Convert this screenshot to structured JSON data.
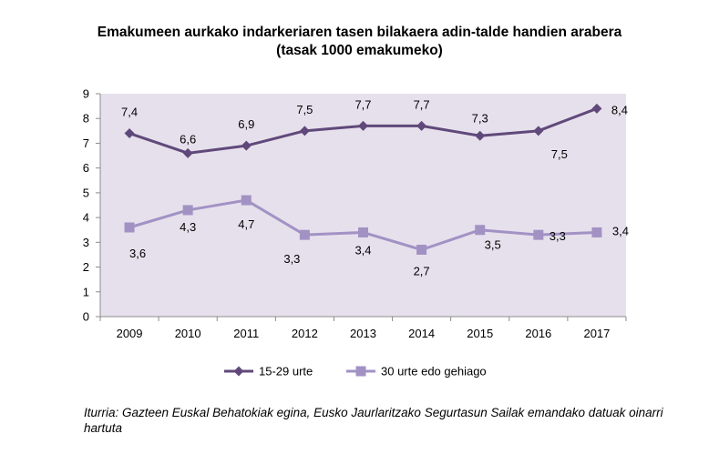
{
  "chart_data": {
    "type": "line",
    "title": "Emakumeen aurkako indarkeriaren tasen bilakaera adin-talde handien arabera",
    "subtitle": "(tasak 1000 emakumeko)",
    "categories": [
      "2009",
      "2010",
      "2011",
      "2012",
      "2013",
      "2014",
      "2015",
      "2016",
      "2017"
    ],
    "ylim": [
      0,
      9
    ],
    "yticks": [
      "0",
      "1",
      "2",
      "3",
      "4",
      "5",
      "6",
      "7",
      "8",
      "9"
    ],
    "grid": false,
    "plot_background": "#e6e0ec",
    "legend_position": "bottom",
    "series": [
      {
        "name": "15-29 urte",
        "color": "#60497a",
        "marker": "diamond",
        "values": [
          7.4,
          6.6,
          6.9,
          7.5,
          7.7,
          7.7,
          7.3,
          7.5,
          8.4
        ],
        "labels": [
          "7,4",
          "6,6",
          "6,9",
          "7,5",
          "7,7",
          "7,7",
          "7,3",
          "7,5",
          "8,4"
        ]
      },
      {
        "name": "30 urte edo gehiago",
        "color": "#a292c4",
        "marker": "square",
        "values": [
          3.6,
          4.3,
          4.7,
          3.3,
          3.4,
          2.7,
          3.5,
          3.3,
          3.4
        ],
        "labels": [
          "3,6",
          "4,3",
          "4,7",
          "3,3",
          "3,4",
          "2,7",
          "3,5",
          "3,3",
          "3,4"
        ]
      }
    ]
  },
  "source": "Iturria: Gazteen Euskal Behatokiak egina, Eusko Jaurlaritzako Segurtasun Sailak emandako datuak oinarri hartuta"
}
